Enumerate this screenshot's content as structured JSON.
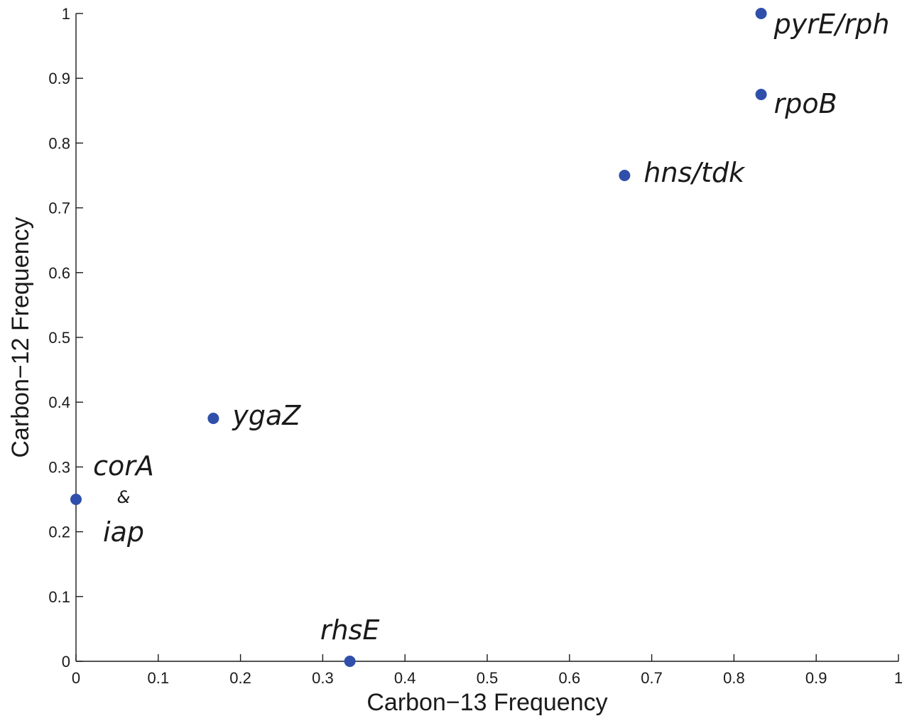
{
  "chart_data": {
    "type": "scatter",
    "title": "",
    "xlabel": "Carbon−13 Frequency",
    "ylabel": "Carbon−12 Frequency",
    "xlim": [
      0,
      1
    ],
    "ylim": [
      0,
      1
    ],
    "xticks": [
      "0",
      "0.1",
      "0.2",
      "0.3",
      "0.4",
      "0.5",
      "0.6",
      "0.7",
      "0.8",
      "0.9",
      "1"
    ],
    "yticks": [
      "0",
      "0.1",
      "0.2",
      "0.3",
      "0.4",
      "0.5",
      "0.6",
      "0.7",
      "0.8",
      "0.9",
      "1"
    ],
    "grid": false,
    "marker_color": "#2f4faa",
    "points": [
      {
        "x": 0.833,
        "y": 1.0,
        "label": "pyrE/rph"
      },
      {
        "x": 0.833,
        "y": 0.875,
        "label": "rpoB"
      },
      {
        "x": 0.667,
        "y": 0.75,
        "label": "hns/tdk"
      },
      {
        "x": 0.167,
        "y": 0.375,
        "label": "ygaZ"
      },
      {
        "x": 0.0,
        "y": 0.25,
        "label": "corA",
        "label_extra": [
          "&",
          "iap"
        ]
      },
      {
        "x": 0.333,
        "y": 0.0,
        "label": "rhsE"
      }
    ]
  }
}
